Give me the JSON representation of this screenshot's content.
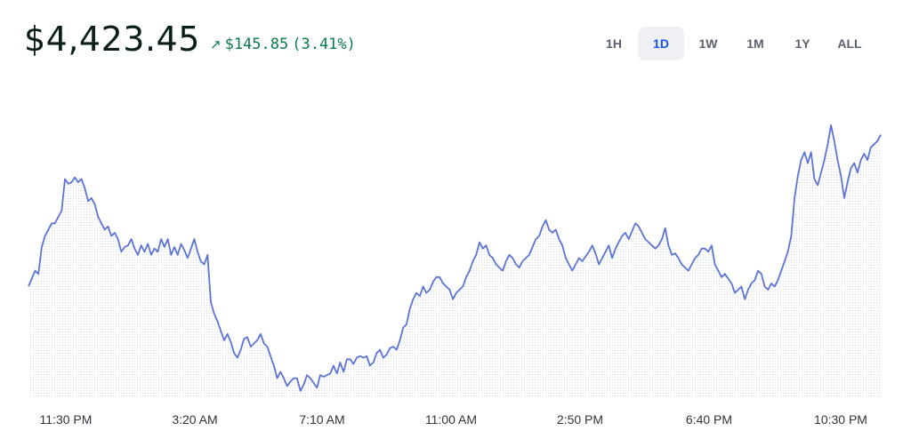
{
  "header": {
    "price": "$4,423.45",
    "change_arrow": "↗",
    "change_amount": "$145.85",
    "change_percent": "(3.41%)",
    "change_color": "#0a7c4a"
  },
  "ranges": [
    {
      "label": "1H",
      "active": false
    },
    {
      "label": "1D",
      "active": true
    },
    {
      "label": "1W",
      "active": false
    },
    {
      "label": "1M",
      "active": false
    },
    {
      "label": "1Y",
      "active": false
    },
    {
      "label": "ALL",
      "active": false
    }
  ],
  "chart_data": {
    "type": "area",
    "title": "",
    "xlabel": "",
    "ylabel": "",
    "tick_labels": [
      "11:30 PM",
      "3:20 AM",
      "7:10 AM",
      "11:00 AM",
      "2:50 PM",
      "6:40 PM",
      "10:30 PM"
    ],
    "line_color": "#5b74d6",
    "fill": "dotted light blue-gray",
    "grid": false,
    "ylim": [
      4250,
      4445
    ],
    "series": [
      {
        "values": [
          4320,
          4325,
          4330,
          4328,
          4345,
          4352,
          4356,
          4360,
          4360,
          4364,
          4368,
          4388,
          4385,
          4386,
          4389,
          4386,
          4388,
          4382,
          4374,
          4376,
          4372,
          4364,
          4360,
          4356,
          4358,
          4352,
          4354,
          4350,
          4342,
          4345,
          4346,
          4350,
          4344,
          4340,
          4346,
          4342,
          4347,
          4340,
          4344,
          4342,
          4350,
          4345,
          4350,
          4340,
          4345,
          4340,
          4347,
          4343,
          4338,
          4344,
          4350,
          4342,
          4336,
          4334,
          4340,
          4310,
          4303,
          4298,
          4292,
          4286,
          4290,
          4285,
          4278,
          4275,
          4280,
          4287,
          4288,
          4282,
          4284,
          4286,
          4290,
          4284,
          4282,
          4276,
          4270,
          4262,
          4266,
          4262,
          4257,
          4260,
          4262,
          4262,
          4254,
          4258,
          4264,
          4262,
          4259,
          4256,
          4264,
          4263,
          4264,
          4265,
          4270,
          4265,
          4272,
          4266,
          4274,
          4274,
          4271,
          4275,
          4276,
          4275,
          4276,
          4270,
          4272,
          4278,
          4280,
          4275,
          4277,
          4281,
          4282,
          4280,
          4286,
          4294,
          4296,
          4306,
          4312,
          4316,
          4314,
          4320,
          4316,
          4318,
          4323,
          4326,
          4326,
          4322,
          4320,
          4318,
          4312,
          4316,
          4318,
          4320,
          4326,
          4330,
          4336,
          4340,
          4348,
          4344,
          4346,
          4340,
          4338,
          4334,
          4332,
          4330,
          4336,
          4340,
          4338,
          4334,
          4332,
          4336,
          4338,
          4340,
          4345,
          4350,
          4352,
          4358,
          4362,
          4356,
          4354,
          4356,
          4350,
          4346,
          4338,
          4334,
          4330,
          4334,
          4338,
          4336,
          4339,
          4342,
          4346,
          4341,
          4334,
          4338,
          4342,
          4346,
          4338,
          4344,
          4348,
          4352,
          4354,
          4350,
          4355,
          4360,
          4358,
          4354,
          4350,
          4348,
          4346,
          4344,
          4346,
          4350,
          4357,
          4346,
          4340,
          4341,
          4338,
          4334,
          4332,
          4330,
          4334,
          4338,
          4340,
          4344,
          4344,
          4342,
          4346,
          4334,
          4330,
          4326,
          4328,
          4325,
          4322,
          4316,
          4318,
          4320,
          4312,
          4318,
          4322,
          4324,
          4330,
          4328,
          4320,
          4318,
          4322,
          4320,
          4324,
          4330,
          4336,
          4342,
          4352,
          4376,
          4390,
          4400,
          4405,
          4398,
          4405,
          4388,
          4384,
          4392,
          4400,
          4410,
          4422,
          4412,
          4400,
          4390,
          4376,
          4386,
          4395,
          4398,
          4392,
          4400,
          4404,
          4400,
          4408,
          4410,
          4412,
          4416
        ]
      }
    ]
  }
}
